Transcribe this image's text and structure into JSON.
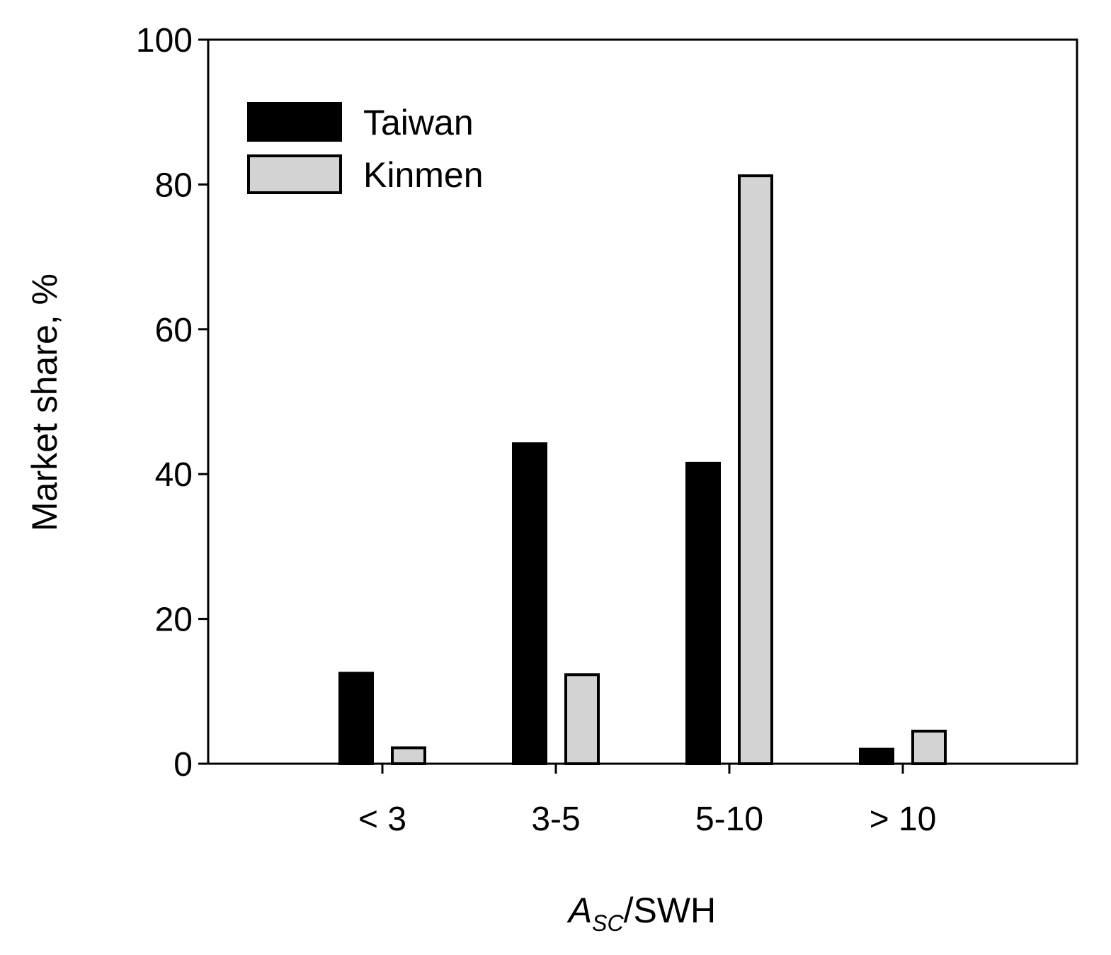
{
  "chart_data": {
    "type": "bar",
    "categories": [
      "< 3",
      "3-5",
      "5-10",
      "> 10"
    ],
    "series": [
      {
        "name": "Taiwan",
        "values": [
          12.5,
          44.2,
          41.5,
          2.0
        ],
        "color": "#000000"
      },
      {
        "name": "Kinmen",
        "values": [
          2.2,
          12.3,
          81.2,
          4.5
        ],
        "color": "#d3d3d3"
      }
    ],
    "title": "",
    "xlabel": {
      "italic": "A",
      "subscript": "SC",
      "rest": "/SWH"
    },
    "ylabel": "Market share, %",
    "ylim": [
      0,
      100
    ],
    "yticks": [
      0,
      20,
      40,
      60,
      80,
      100
    ],
    "grid": false,
    "legend_position": "top-left",
    "border_color": "#000000"
  }
}
